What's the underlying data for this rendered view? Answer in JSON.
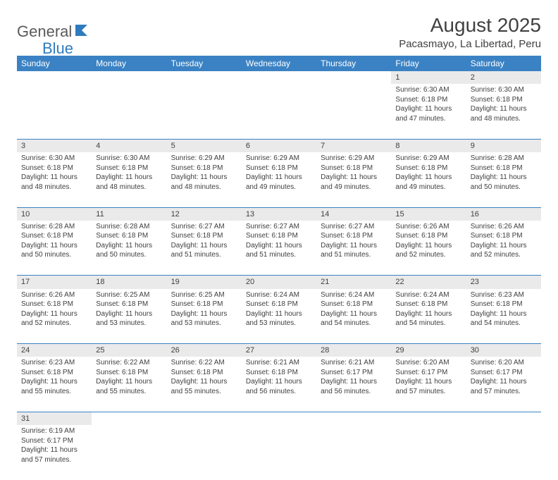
{
  "brand": {
    "part1": "General",
    "part2": "Blue"
  },
  "title": "August 2025",
  "location": "Pacasmayo, La Libertad, Peru",
  "colors": {
    "header_bg": "#3b82c4",
    "header_text": "#ffffff",
    "daynum_bg": "#eaeaea",
    "cell_border": "#3b82c4",
    "text": "#404040",
    "brand_gray": "#5a5a5a",
    "brand_blue": "#2f7bbf"
  },
  "weekdays": [
    "Sunday",
    "Monday",
    "Tuesday",
    "Wednesday",
    "Thursday",
    "Friday",
    "Saturday"
  ],
  "layout": {
    "first_weekday_index": 5,
    "days_in_month": 31,
    "rows": 6
  },
  "days": {
    "1": {
      "sunrise": "6:30 AM",
      "sunset": "6:18 PM",
      "daylight": "11 hours and 47 minutes."
    },
    "2": {
      "sunrise": "6:30 AM",
      "sunset": "6:18 PM",
      "daylight": "11 hours and 48 minutes."
    },
    "3": {
      "sunrise": "6:30 AM",
      "sunset": "6:18 PM",
      "daylight": "11 hours and 48 minutes."
    },
    "4": {
      "sunrise": "6:30 AM",
      "sunset": "6:18 PM",
      "daylight": "11 hours and 48 minutes."
    },
    "5": {
      "sunrise": "6:29 AM",
      "sunset": "6:18 PM",
      "daylight": "11 hours and 48 minutes."
    },
    "6": {
      "sunrise": "6:29 AM",
      "sunset": "6:18 PM",
      "daylight": "11 hours and 49 minutes."
    },
    "7": {
      "sunrise": "6:29 AM",
      "sunset": "6:18 PM",
      "daylight": "11 hours and 49 minutes."
    },
    "8": {
      "sunrise": "6:29 AM",
      "sunset": "6:18 PM",
      "daylight": "11 hours and 49 minutes."
    },
    "9": {
      "sunrise": "6:28 AM",
      "sunset": "6:18 PM",
      "daylight": "11 hours and 50 minutes."
    },
    "10": {
      "sunrise": "6:28 AM",
      "sunset": "6:18 PM",
      "daylight": "11 hours and 50 minutes."
    },
    "11": {
      "sunrise": "6:28 AM",
      "sunset": "6:18 PM",
      "daylight": "11 hours and 50 minutes."
    },
    "12": {
      "sunrise": "6:27 AM",
      "sunset": "6:18 PM",
      "daylight": "11 hours and 51 minutes."
    },
    "13": {
      "sunrise": "6:27 AM",
      "sunset": "6:18 PM",
      "daylight": "11 hours and 51 minutes."
    },
    "14": {
      "sunrise": "6:27 AM",
      "sunset": "6:18 PM",
      "daylight": "11 hours and 51 minutes."
    },
    "15": {
      "sunrise": "6:26 AM",
      "sunset": "6:18 PM",
      "daylight": "11 hours and 52 minutes."
    },
    "16": {
      "sunrise": "6:26 AM",
      "sunset": "6:18 PM",
      "daylight": "11 hours and 52 minutes."
    },
    "17": {
      "sunrise": "6:26 AM",
      "sunset": "6:18 PM",
      "daylight": "11 hours and 52 minutes."
    },
    "18": {
      "sunrise": "6:25 AM",
      "sunset": "6:18 PM",
      "daylight": "11 hours and 53 minutes."
    },
    "19": {
      "sunrise": "6:25 AM",
      "sunset": "6:18 PM",
      "daylight": "11 hours and 53 minutes."
    },
    "20": {
      "sunrise": "6:24 AM",
      "sunset": "6:18 PM",
      "daylight": "11 hours and 53 minutes."
    },
    "21": {
      "sunrise": "6:24 AM",
      "sunset": "6:18 PM",
      "daylight": "11 hours and 54 minutes."
    },
    "22": {
      "sunrise": "6:24 AM",
      "sunset": "6:18 PM",
      "daylight": "11 hours and 54 minutes."
    },
    "23": {
      "sunrise": "6:23 AM",
      "sunset": "6:18 PM",
      "daylight": "11 hours and 54 minutes."
    },
    "24": {
      "sunrise": "6:23 AM",
      "sunset": "6:18 PM",
      "daylight": "11 hours and 55 minutes."
    },
    "25": {
      "sunrise": "6:22 AM",
      "sunset": "6:18 PM",
      "daylight": "11 hours and 55 minutes."
    },
    "26": {
      "sunrise": "6:22 AM",
      "sunset": "6:18 PM",
      "daylight": "11 hours and 55 minutes."
    },
    "27": {
      "sunrise": "6:21 AM",
      "sunset": "6:18 PM",
      "daylight": "11 hours and 56 minutes."
    },
    "28": {
      "sunrise": "6:21 AM",
      "sunset": "6:17 PM",
      "daylight": "11 hours and 56 minutes."
    },
    "29": {
      "sunrise": "6:20 AM",
      "sunset": "6:17 PM",
      "daylight": "11 hours and 57 minutes."
    },
    "30": {
      "sunrise": "6:20 AM",
      "sunset": "6:17 PM",
      "daylight": "11 hours and 57 minutes."
    },
    "31": {
      "sunrise": "6:19 AM",
      "sunset": "6:17 PM",
      "daylight": "11 hours and 57 minutes."
    }
  },
  "labels": {
    "sunrise": "Sunrise:",
    "sunset": "Sunset:",
    "daylight": "Daylight:"
  }
}
